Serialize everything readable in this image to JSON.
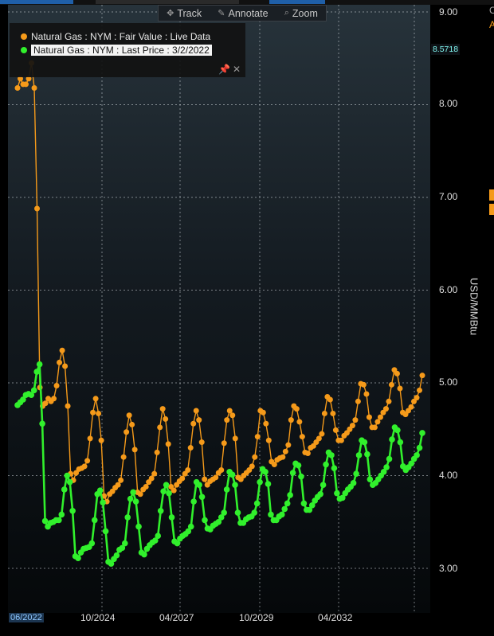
{
  "toolbar": {
    "track": "Track",
    "annotate": "Annotate",
    "zoom": "Zoom"
  },
  "legend": {
    "series1": "Natural Gas : NYM : Fair Value : Live Data",
    "series2": "Natural Gas : NYM : Last Price : 3/2/2022",
    "pin_icon": "pin-icon",
    "close_icon": "close-icon"
  },
  "last_value_badge": "8.5718",
  "sidebar": {
    "char1": "C",
    "char2": "A"
  },
  "colors": {
    "series1": "#f59a1a",
    "series2": "#31f02c",
    "plot_top": "#27333b",
    "plot_bottom": "#05080a"
  },
  "chart_data": {
    "type": "line",
    "title": "",
    "xlabel": "",
    "ylabel": "USD/MMBtu",
    "ylim": [
      2.75,
      9.1
    ],
    "yticks": [
      "9.00",
      "8.00",
      "7.00",
      "6.00",
      "5.00",
      "4.00",
      "3.00"
    ],
    "xticks": [
      "06/2022",
      "10/2024",
      "04/2027",
      "10/2029",
      "04/2032"
    ],
    "x_range": [
      "2022-06",
      "2034-12"
    ],
    "grid": true,
    "legend_position": "top-left",
    "series": [
      {
        "name": "Natural Gas : NYM : Fair Value : Live Data",
        "color": "#f59a1a",
        "values": [
          8.18,
          8.28,
          8.22,
          8.22,
          8.28,
          8.45,
          8.18,
          6.88,
          4.95,
          4.75,
          4.78,
          4.83,
          4.8,
          4.83,
          4.97,
          5.22,
          5.35,
          5.18,
          4.75,
          4.02,
          3.95,
          4.03,
          4.07,
          4.08,
          4.1,
          4.16,
          4.4,
          4.68,
          4.83,
          4.67,
          4.38,
          3.78,
          3.72,
          3.8,
          3.83,
          3.87,
          3.9,
          3.95,
          4.2,
          4.47,
          4.65,
          4.55,
          4.28,
          3.82,
          3.8,
          3.85,
          3.88,
          3.93,
          3.97,
          4.02,
          4.25,
          4.52,
          4.72,
          4.61,
          4.34,
          3.88,
          3.84,
          3.9,
          3.94,
          3.97,
          4.02,
          4.06,
          4.3,
          4.56,
          4.7,
          4.6,
          4.36,
          3.96,
          3.9,
          3.94,
          3.96,
          3.98,
          4.03,
          4.06,
          4.35,
          4.6,
          4.7,
          4.65,
          4.4,
          3.98,
          3.96,
          4.0,
          4.03,
          4.06,
          4.1,
          4.2,
          4.42,
          4.7,
          4.68,
          4.56,
          4.38,
          4.15,
          4.12,
          4.17,
          4.19,
          4.2,
          4.26,
          4.33,
          4.6,
          4.75,
          4.72,
          4.58,
          4.42,
          4.25,
          4.24,
          4.3,
          4.32,
          4.36,
          4.4,
          4.45,
          4.67,
          4.85,
          4.82,
          4.67,
          4.49,
          4.38,
          4.38,
          4.43,
          4.46,
          4.5,
          4.54,
          4.6,
          4.8,
          4.99,
          4.98,
          4.88,
          4.63,
          4.52,
          4.52,
          4.58,
          4.63,
          4.68,
          4.72,
          4.8,
          4.98,
          5.14,
          5.1,
          4.94,
          4.68,
          4.66,
          4.7,
          4.74,
          4.8,
          4.84,
          4.92,
          5.08
        ]
      },
      {
        "name": "Natural Gas : NYM : Last Price : 3/2/2022",
        "color": "#31f02c",
        "values": [
          4.76,
          4.79,
          4.82,
          4.87,
          4.88,
          4.87,
          4.92,
          5.12,
          5.2,
          4.56,
          3.51,
          3.45,
          3.49,
          3.5,
          3.52,
          3.52,
          3.58,
          3.85,
          4.0,
          3.93,
          3.62,
          3.13,
          3.11,
          3.17,
          3.21,
          3.22,
          3.23,
          3.27,
          3.52,
          3.8,
          3.84,
          3.71,
          3.4,
          3.07,
          3.05,
          3.1,
          3.14,
          3.2,
          3.22,
          3.27,
          3.55,
          3.75,
          3.82,
          3.72,
          3.45,
          3.17,
          3.15,
          3.21,
          3.25,
          3.28,
          3.3,
          3.35,
          3.62,
          3.83,
          3.9,
          3.81,
          3.55,
          3.29,
          3.27,
          3.32,
          3.35,
          3.37,
          3.4,
          3.45,
          3.72,
          3.93,
          3.9,
          3.77,
          3.52,
          3.43,
          3.42,
          3.46,
          3.48,
          3.5,
          3.55,
          3.6,
          3.85,
          4.04,
          4.01,
          3.9,
          3.6,
          3.49,
          3.49,
          3.53,
          3.55,
          3.56,
          3.6,
          3.7,
          3.93,
          4.07,
          4.04,
          3.91,
          3.58,
          3.52,
          3.52,
          3.56,
          3.58,
          3.64,
          3.7,
          3.79,
          4.03,
          4.13,
          4.11,
          3.99,
          3.7,
          3.63,
          3.63,
          3.68,
          3.73,
          3.77,
          3.8,
          3.9,
          4.12,
          4.25,
          4.22,
          4.08,
          3.81,
          3.75,
          3.76,
          3.81,
          3.85,
          3.88,
          3.92,
          4.02,
          4.22,
          4.38,
          4.36,
          4.23,
          3.96,
          3.9,
          3.92,
          3.96,
          4.0,
          4.04,
          4.09,
          4.18,
          4.39,
          4.52,
          4.49,
          4.36,
          4.1,
          4.06,
          4.09,
          4.13,
          4.18,
          4.22,
          4.3,
          4.46
        ]
      }
    ]
  }
}
